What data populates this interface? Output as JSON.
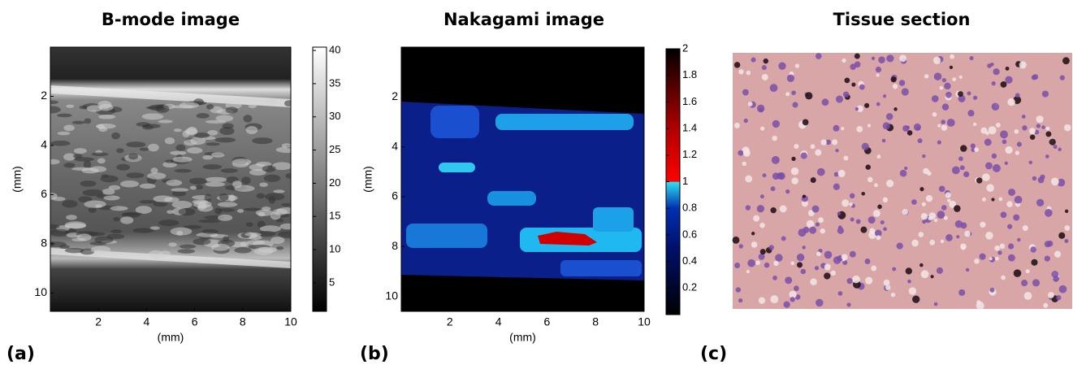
{
  "panels": [
    {
      "label": "(a)",
      "title": "B-mode image",
      "xlabel": "(mm)",
      "ylabel": "(mm)",
      "xlim": [
        0,
        10
      ],
      "ylim": [
        0,
        10.75
      ],
      "xticks": [
        2,
        4,
        6,
        8,
        10
      ],
      "yticks": [
        2,
        4,
        6,
        8,
        10
      ],
      "colorbar": {
        "lim": [
          0.7,
          40.5
        ],
        "ticks": [
          5,
          10,
          15,
          20,
          25,
          30,
          35,
          40
        ]
      }
    },
    {
      "label": "(b)",
      "title": "Nakagami image",
      "xlabel": "(mm)",
      "ylabel": "(mm)",
      "xlim": [
        0,
        10
      ],
      "ylim": [
        0,
        10.6
      ],
      "xticks": [
        2,
        4,
        6,
        8,
        10
      ],
      "yticks": [
        2,
        4,
        6,
        8,
        10
      ],
      "colorbar": {
        "lim": [
          0,
          2
        ],
        "ticks": [
          0.2,
          0.4,
          0.6,
          0.8,
          1,
          1.2,
          1.4,
          1.6,
          1.8,
          2
        ]
      }
    },
    {
      "label": "(c)",
      "title": "Tissue section"
    }
  ]
}
